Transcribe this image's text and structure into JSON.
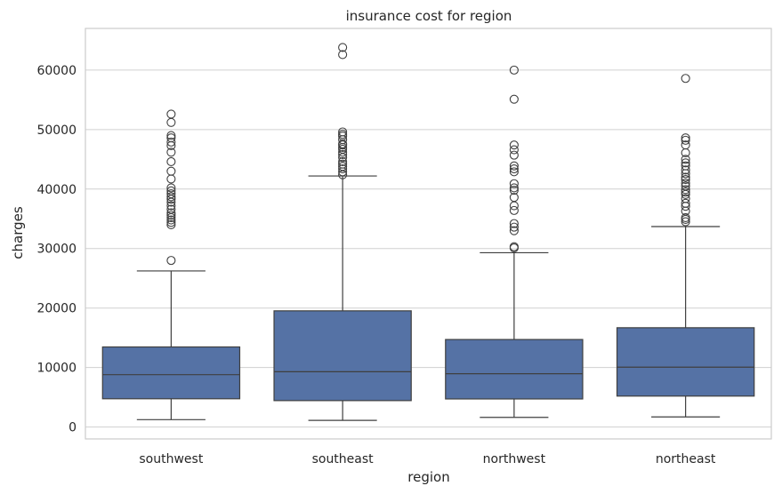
{
  "chart_data": {
    "type": "box",
    "title": "insurance cost for region",
    "xlabel": "region",
    "ylabel": "charges",
    "ylim": [
      -2000,
      67000
    ],
    "yticks": [
      0,
      10000,
      20000,
      30000,
      40000,
      50000,
      60000
    ],
    "ytick_labels": [
      "0",
      "10000",
      "20000",
      "30000",
      "40000",
      "50000",
      "60000"
    ],
    "grid": true,
    "colors": {
      "box": "#5572a5",
      "line": "#3f3f3f",
      "grid": "#d0d0d0",
      "frame": "#cccccc"
    },
    "categories": [
      "southwest",
      "southeast",
      "northwest",
      "northeast"
    ],
    "boxes": [
      {
        "category": "southwest",
        "whisker_low": 1240,
        "q1": 4750,
        "median": 8800,
        "q3": 13460,
        "whisker_high": 26240,
        "outliers": [
          28000,
          34000,
          34400,
          34800,
          35200,
          35600,
          36000,
          36600,
          37200,
          37800,
          38300,
          38700,
          39200,
          39700,
          40200,
          41700,
          43000,
          44600,
          46200,
          47300,
          47900,
          48600,
          49000,
          51200,
          52600
        ]
      },
      {
        "category": "southeast",
        "whisker_low": 1120,
        "q1": 4440,
        "median": 9300,
        "q3": 19530,
        "whisker_high": 42200,
        "outliers": [
          42400,
          42900,
          43400,
          43800,
          44200,
          44600,
          45300,
          45800,
          46200,
          46700,
          47000,
          47400,
          47600,
          48300,
          48900,
          49200,
          49600,
          62600,
          63800
        ]
      },
      {
        "category": "northwest",
        "whisker_low": 1620,
        "q1": 4720,
        "median": 8960,
        "q3": 14710,
        "whisker_high": 29300,
        "outliers": [
          30100,
          30300,
          33000,
          33600,
          34200,
          36400,
          37200,
          38600,
          39800,
          40200,
          40900,
          42900,
          43400,
          43900,
          45700,
          46600,
          47400,
          55100,
          60000
        ]
      },
      {
        "category": "northeast",
        "whisker_low": 1700,
        "q1": 5200,
        "median": 10060,
        "q3": 16690,
        "whisker_high": 33700,
        "outliers": [
          34500,
          34900,
          35200,
          36300,
          37100,
          37600,
          38400,
          39100,
          39500,
          39900,
          40500,
          41000,
          41600,
          42000,
          42600,
          43200,
          43900,
          44400,
          45000,
          46100,
          47400,
          48200,
          48600,
          58600
        ]
      }
    ]
  }
}
